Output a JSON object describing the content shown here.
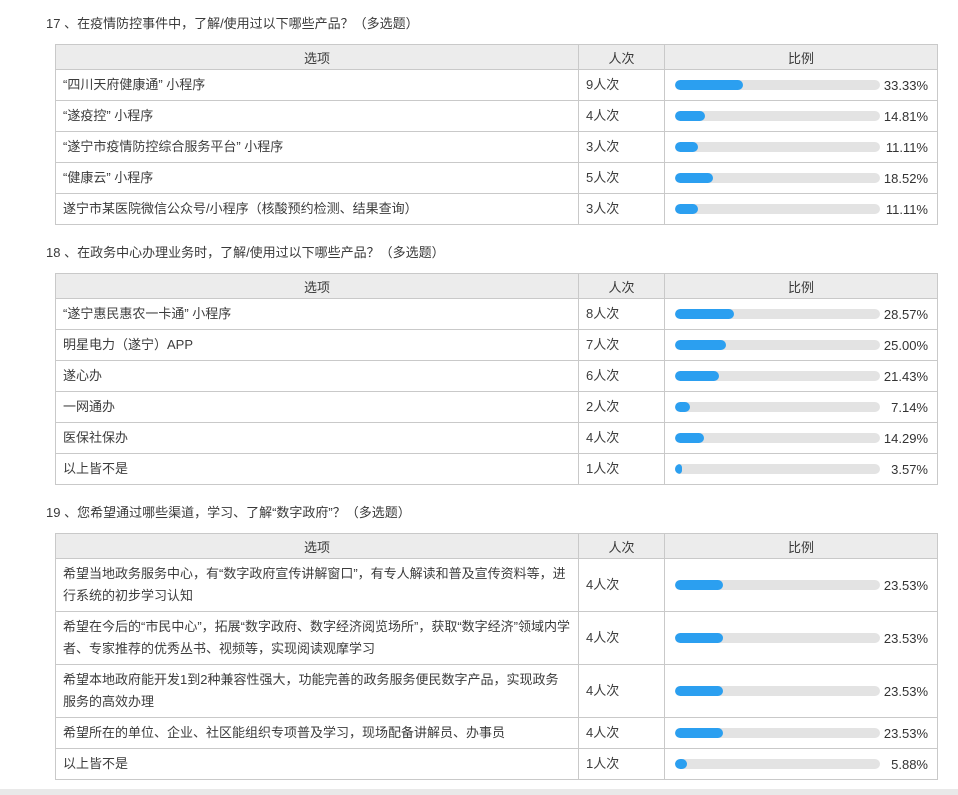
{
  "colors": {
    "bar_fill": "#2b9ff0",
    "bar_track": "#e3e3e3",
    "header_bg": "#ececec",
    "border": "#c9c9c9"
  },
  "columns": {
    "option": "选项",
    "count": "人次",
    "ratio": "比例"
  },
  "questions": [
    {
      "title": "17 、在疫情防控事件中，了解/使用过以下哪些产品？（多选题）",
      "rows": [
        {
          "option": "“四川天府健康通” 小程序",
          "count": "9人次",
          "percent": "33.33%",
          "value": 33.33
        },
        {
          "option": "“遂疫控” 小程序",
          "count": "4人次",
          "percent": "14.81%",
          "value": 14.81
        },
        {
          "option": "“遂宁市疫情防控综合服务平台” 小程序",
          "count": "3人次",
          "percent": "11.11%",
          "value": 11.11
        },
        {
          "option": "“健康云” 小程序",
          "count": "5人次",
          "percent": "18.52%",
          "value": 18.52
        },
        {
          "option": "遂宁市某医院微信公众号/小程序（核酸预约检测、结果查询）",
          "count": "3人次",
          "percent": "11.11%",
          "value": 11.11
        }
      ]
    },
    {
      "title": "18 、在政务中心办理业务时，了解/使用过以下哪些产品？（多选题）",
      "rows": [
        {
          "option": "“遂宁惠民惠农一卡通” 小程序",
          "count": "8人次",
          "percent": "28.57%",
          "value": 28.57
        },
        {
          "option": "明星电力（遂宁）APP",
          "count": "7人次",
          "percent": "25.00%",
          "value": 25.0
        },
        {
          "option": "遂心办",
          "count": "6人次",
          "percent": "21.43%",
          "value": 21.43
        },
        {
          "option": "一网通办",
          "count": "2人次",
          "percent": "7.14%",
          "value": 7.14
        },
        {
          "option": "医保社保办",
          "count": "4人次",
          "percent": "14.29%",
          "value": 14.29
        },
        {
          "option": "以上皆不是",
          "count": "1人次",
          "percent": "3.57%",
          "value": 3.57
        }
      ]
    },
    {
      "title": "19 、您希望通过哪些渠道，学习、了解“数字政府”？（多选题）",
      "rows": [
        {
          "option": "希望当地政务服务中心，有“数字政府宣传讲解窗口”，有专人解读和普及宣传资料等，进行系统的初步学习认知",
          "count": "4人次",
          "percent": "23.53%",
          "value": 23.53
        },
        {
          "option": "希望在今后的“市民中心”，拓展“数字政府、数字经济阅览场所”，获取“数字经济”领域内学者、专家推荐的优秀丛书、视频等，实现阅读观摩学习",
          "count": "4人次",
          "percent": "23.53%",
          "value": 23.53
        },
        {
          "option": "希望本地政府能开发1到2种兼容性强大，功能完善的政务服务便民数字产品，实现政务服务的高效办理",
          "count": "4人次",
          "percent": "23.53%",
          "value": 23.53
        },
        {
          "option": "希望所在的单位、企业、社区能组织专项普及学习，现场配备讲解员、办事员",
          "count": "4人次",
          "percent": "23.53%",
          "value": 23.53
        },
        {
          "option": "以上皆不是",
          "count": "1人次",
          "percent": "5.88%",
          "value": 5.88
        }
      ]
    }
  ]
}
